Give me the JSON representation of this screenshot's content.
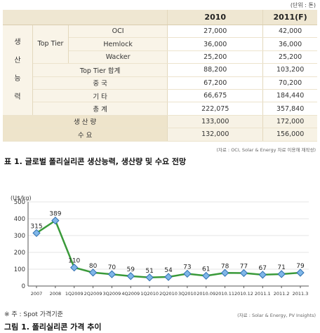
{
  "unit_note": "(단위 : 톤)",
  "table": {
    "header": [
      "",
      "2010",
      "2011(F)"
    ],
    "group_label": "생산능력",
    "group_chars": [
      "생",
      "산",
      "능",
      "력"
    ],
    "top_tier_label": "Top Tier",
    "rows": [
      {
        "label": "OCI",
        "v2010": "27,000",
        "v2011": "42,000"
      },
      {
        "label": "Hemlock",
        "v2010": "36,000",
        "v2011": "36,000"
      },
      {
        "label": "Wacker",
        "v2010": "25,200",
        "v2011": "25,200"
      },
      {
        "label": "Top Tier 합계",
        "v2010": "88,200",
        "v2011": "103,200"
      },
      {
        "label": "중 국",
        "v2010": "67,200",
        "v2011": "70,200"
      },
      {
        "label": "기 타",
        "v2010": "66,675",
        "v2011": "184,440"
      },
      {
        "label": "총 계",
        "v2010": "222,075",
        "v2011": "357,840"
      },
      {
        "label": "생 산 량",
        "v2010": "133,000",
        "v2011": "172,000"
      },
      {
        "label": "수 요",
        "v2010": "132,000",
        "v2011": "156,000"
      }
    ],
    "source": "(자료 : OCI, Solar & Energy 자료 이용해 재작성)",
    "caption": "표 1. 글로벌 폴리실리콘 생산능력, 생산량 및 수요 전망"
  },
  "chart_data": {
    "type": "line",
    "ylabel": "(U$/kg)",
    "ylim": [
      0,
      500
    ],
    "yticks": [
      0,
      100,
      200,
      300,
      400,
      500
    ],
    "x": [
      "2007",
      "2008",
      "1Q2009",
      "2Q2009",
      "3Q2009",
      "4Q2009",
      "1Q2010",
      "2Q2010",
      "3Q2010",
      "2010.09",
      "2010.11",
      "2010.12",
      "2011.1",
      "2011.2",
      "2011.3"
    ],
    "values": [
      315,
      389,
      110,
      80,
      70,
      59,
      51,
      54,
      73,
      61,
      78,
      77,
      67,
      71,
      79
    ],
    "line_color": "#3a9a3a",
    "marker_color": "#7fb6e8",
    "grid": true
  },
  "chart_note": "※ 주 : Spot 가격기준",
  "chart_source": "(자료 : Solar & Energy, PV Insights)",
  "chart_caption": "그림 1. 폴리실리콘 가격 추이"
}
